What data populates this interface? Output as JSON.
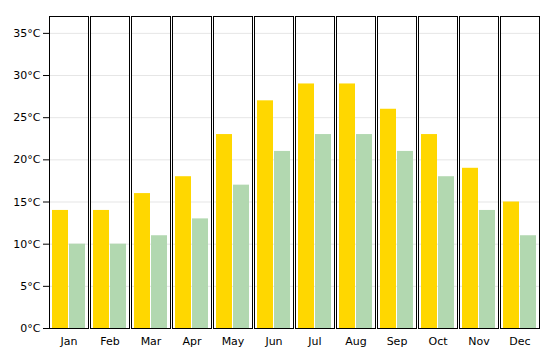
{
  "chart_data": {
    "type": "bar",
    "categories": [
      "Jan",
      "Feb",
      "Mar",
      "Apr",
      "May",
      "Jun",
      "Jul",
      "Aug",
      "Sep",
      "Oct",
      "Nov",
      "Dec"
    ],
    "series": [
      {
        "color": "#FFD700",
        "values": [
          14,
          14,
          16,
          18,
          23,
          27,
          29,
          29,
          26,
          23,
          19,
          15
        ]
      },
      {
        "color": "#B2D8B0",
        "values": [
          10,
          10,
          11,
          13,
          17,
          21,
          23,
          23,
          21,
          18,
          14,
          11
        ]
      }
    ],
    "ylim": [
      0,
      37
    ],
    "yticks": [
      {
        "value": 0,
        "label": "0°C"
      },
      {
        "value": 5,
        "label": "5°C"
      },
      {
        "value": 10,
        "label": "10°C"
      },
      {
        "value": 15,
        "label": "15°C"
      },
      {
        "value": 20,
        "label": "20°C"
      },
      {
        "value": 25,
        "label": "25°C"
      },
      {
        "value": 30,
        "label": "30°C"
      },
      {
        "value": 35,
        "label": "35°C"
      }
    ],
    "grid": true
  }
}
